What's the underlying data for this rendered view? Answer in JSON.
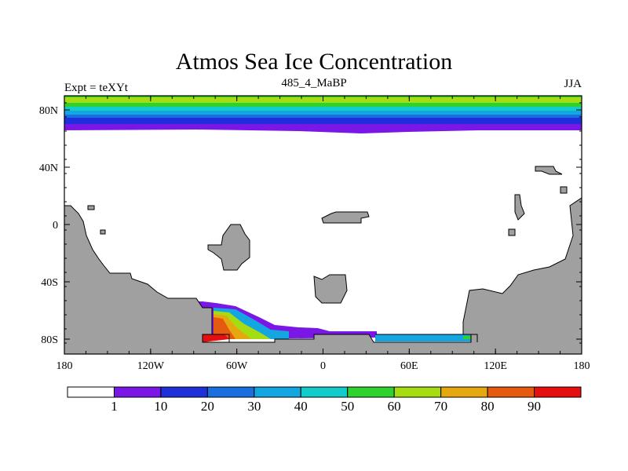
{
  "title": "Atmos Sea Ice Concentration",
  "subtitle_left": "Expt = teXYt",
  "subtitle_center": "485_4_MaBP",
  "subtitle_right": "JJA",
  "map": {
    "lat_ticks": [
      "80N",
      "40N",
      "0",
      "40S",
      "80S"
    ],
    "lon_ticks": [
      "180",
      "120W",
      "60W",
      "0",
      "60E",
      "120E",
      "180"
    ],
    "land_color": "#a0a0a0"
  },
  "colorbar": {
    "labels": [
      "1",
      "10",
      "20",
      "30",
      "40",
      "50",
      "60",
      "70",
      "80",
      "90"
    ],
    "colors": [
      "#ffffff",
      "#7a17e6",
      "#1f2fd9",
      "#1a6fe0",
      "#13a6e0",
      "#12cccc",
      "#2fd12f",
      "#a6dc12",
      "#e6a80f",
      "#e65a0f",
      "#e60f0f"
    ]
  }
}
